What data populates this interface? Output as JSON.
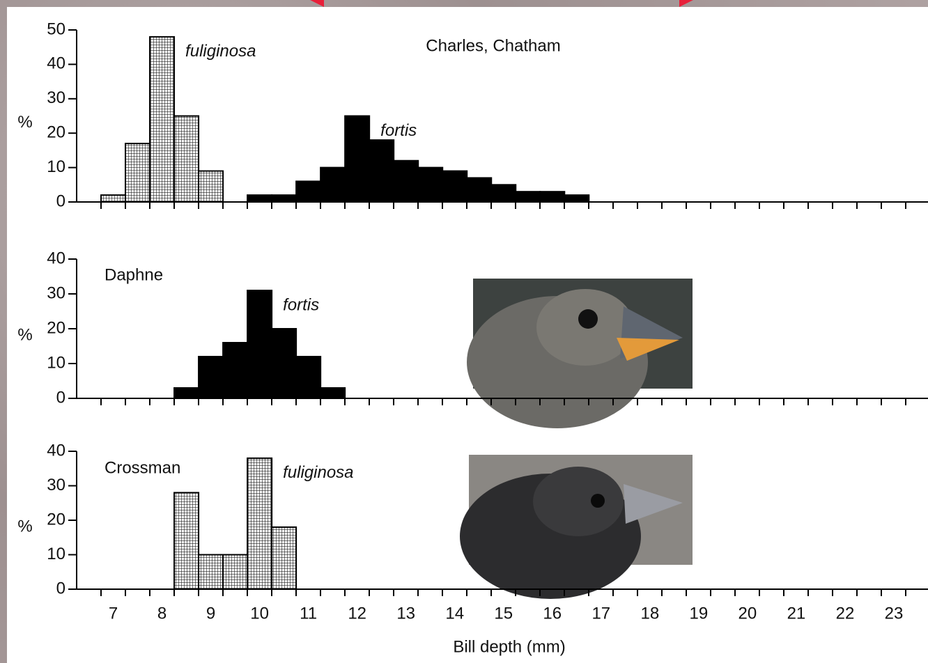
{
  "chart_data": [
    {
      "type": "histogram",
      "title": "Charles, Chatham",
      "ylabel": "%",
      "xlim": [
        6.25,
        23.7
      ],
      "ylim": [
        0,
        50
      ],
      "yticks": [
        0,
        10,
        20,
        30,
        40,
        50
      ],
      "series": [
        {
          "name": "fuliginosa",
          "fill": "hatched",
          "color": "#000000",
          "bins": [
            6.75,
            7.25,
            7.75,
            8.25,
            8.75,
            9.25
          ],
          "values": [
            2,
            17,
            48,
            25,
            9
          ]
        },
        {
          "name": "fortis",
          "fill": "solid",
          "color": "#000000",
          "bins": [
            9.75,
            10.25,
            10.75,
            11.25,
            11.75,
            12.25,
            12.75,
            13.25,
            13.75,
            14.25,
            14.75,
            15.25,
            15.75,
            16.25,
            16.75
          ],
          "values": [
            2,
            2,
            6,
            10,
            25,
            18,
            12,
            10,
            9,
            7,
            5,
            3,
            3,
            2
          ]
        }
      ]
    },
    {
      "type": "histogram",
      "title": "Daphne",
      "ylabel": "%",
      "xlim": [
        6.25,
        23.7
      ],
      "ylim": [
        0,
        40
      ],
      "yticks": [
        0,
        10,
        20,
        30,
        40
      ],
      "series": [
        {
          "name": "fortis",
          "fill": "solid",
          "color": "#000000",
          "bins": [
            8.25,
            8.75,
            9.25,
            9.75,
            10.25,
            10.75,
            11.25,
            11.75
          ],
          "values": [
            3,
            12,
            16,
            31,
            20,
            12,
            3
          ]
        }
      ]
    },
    {
      "type": "histogram",
      "title": "Crossman",
      "ylabel": "%",
      "xlabel": "Bill depth (mm)",
      "xlim": [
        6.25,
        23.7
      ],
      "ylim": [
        0,
        40
      ],
      "yticks": [
        0,
        10,
        20,
        30,
        40
      ],
      "xticks": [
        7,
        8,
        9,
        10,
        11,
        12,
        13,
        14,
        15,
        16,
        17,
        18,
        19,
        20,
        21,
        22,
        23
      ],
      "series": [
        {
          "name": "fuliginosa",
          "fill": "hatched",
          "color": "#000000",
          "bins": [
            8.25,
            8.75,
            9.25,
            9.75,
            10.25,
            10.75
          ],
          "values": [
            28,
            10,
            10,
            38,
            18
          ]
        }
      ]
    }
  ]
}
